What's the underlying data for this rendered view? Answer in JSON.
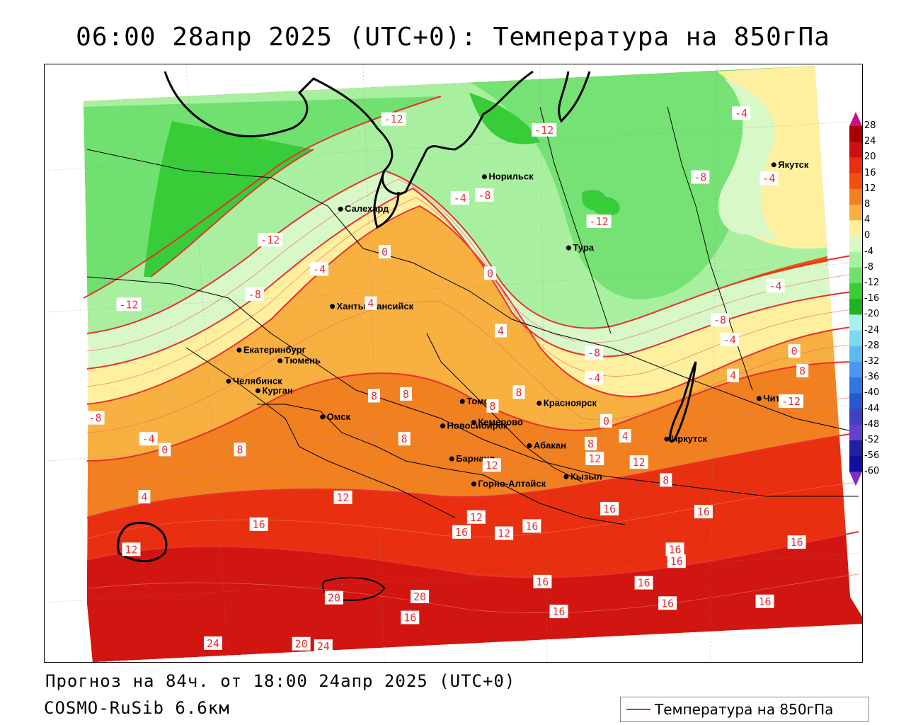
{
  "title": "06:00 28апр 2025 (UTC+0): Температура на 850гПа",
  "forecast_line": "Прогноз на 84ч. от 18:00 24апр 2025 (UTC+0)",
  "model_line": "COSMO-RuSib 6.6км",
  "legend": {
    "label": "Температура на 850гПа",
    "color": "#e83030"
  },
  "colorbar": {
    "levels": [
      "28",
      "24",
      "20",
      "16",
      "12",
      "8",
      "4",
      "0",
      "-4",
      "-8",
      "-12",
      "-16",
      "-20",
      "-24",
      "-28",
      "-32",
      "-36",
      "-40",
      "-44",
      "-48",
      "-52",
      "-56",
      "-60"
    ],
    "colors": [
      "#cc1080",
      "#a80000",
      "#cc1010",
      "#e83010",
      "#f05010",
      "#f08020",
      "#f8b040",
      "#fff0a0",
      "#d8f8c8",
      "#a8f0a0",
      "#70e070",
      "#38cc38",
      "#20b020",
      "#a8f0f0",
      "#80d8f0",
      "#60b8f0",
      "#4898f0",
      "#3078e0",
      "#2858d0",
      "#4040c0",
      "#6040d0",
      "#2020a0",
      "#1010a0",
      "#8030c0"
    ]
  },
  "cities": [
    {
      "name": "Норильск",
      "fx": 0.538,
      "fy": 0.188
    },
    {
      "name": "Якутск",
      "fx": 0.892,
      "fy": 0.168
    },
    {
      "name": "Салехард",
      "fx": 0.362,
      "fy": 0.242
    },
    {
      "name": "Тура",
      "fx": 0.641,
      "fy": 0.307
    },
    {
      "name": "Ханты-Мансийск",
      "fx": 0.352,
      "fy": 0.405
    },
    {
      "name": "Екатеринбург",
      "fx": 0.238,
      "fy": 0.478
    },
    {
      "name": "Тюмень",
      "fx": 0.288,
      "fy": 0.496
    },
    {
      "name": "Челябинск",
      "fx": 0.225,
      "fy": 0.53
    },
    {
      "name": "Курган",
      "fx": 0.261,
      "fy": 0.546
    },
    {
      "name": "Омск",
      "fx": 0.34,
      "fy": 0.59
    },
    {
      "name": "Новосибирск",
      "fx": 0.487,
      "fy": 0.605
    },
    {
      "name": "Томск",
      "fx": 0.511,
      "fy": 0.564
    },
    {
      "name": "Кемерово",
      "fx": 0.525,
      "fy": 0.599
    },
    {
      "name": "Красноярск",
      "fx": 0.605,
      "fy": 0.567
    },
    {
      "name": "Барнаул",
      "fx": 0.498,
      "fy": 0.66
    },
    {
      "name": "Абакан",
      "fx": 0.593,
      "fy": 0.638
    },
    {
      "name": "Иркутск",
      "fx": 0.761,
      "fy": 0.627
    },
    {
      "name": "Чита",
      "fx": 0.874,
      "fy": 0.559
    },
    {
      "name": "Горно-Алтайск",
      "fx": 0.525,
      "fy": 0.702
    },
    {
      "name": "Кызыл",
      "fx": 0.638,
      "fy": 0.69
    }
  ],
  "contour_labels": [
    {
      "t": "-12",
      "fx": 0.427,
      "fy": 0.092
    },
    {
      "t": "-12",
      "fx": 0.611,
      "fy": 0.11
    },
    {
      "t": "-4",
      "fx": 0.852,
      "fy": 0.082
    },
    {
      "t": "-8",
      "fx": 0.802,
      "fy": 0.189
    },
    {
      "t": "-4",
      "fx": 0.886,
      "fy": 0.191
    },
    {
      "t": "-4",
      "fx": 0.508,
      "fy": 0.224
    },
    {
      "t": "-8",
      "fx": 0.538,
      "fy": 0.219
    },
    {
      "t": "-12",
      "fx": 0.678,
      "fy": 0.263
    },
    {
      "t": "-12",
      "fx": 0.276,
      "fy": 0.294
    },
    {
      "t": "0",
      "fx": 0.416,
      "fy": 0.314
    },
    {
      "t": "-4",
      "fx": 0.336,
      "fy": 0.343
    },
    {
      "t": "0",
      "fx": 0.545,
      "fy": 0.35
    },
    {
      "t": "-4",
      "fx": 0.894,
      "fy": 0.371
    },
    {
      "t": "-8",
      "fx": 0.257,
      "fy": 0.385
    },
    {
      "t": "-12",
      "fx": 0.103,
      "fy": 0.402
    },
    {
      "t": "4",
      "fx": 0.399,
      "fy": 0.4
    },
    {
      "t": "-8",
      "fx": 0.826,
      "fy": 0.428
    },
    {
      "t": "4",
      "fx": 0.558,
      "fy": 0.446
    },
    {
      "t": "-4",
      "fx": 0.838,
      "fy": 0.461
    },
    {
      "t": "0",
      "fx": 0.917,
      "fy": 0.48
    },
    {
      "t": "-8",
      "fx": 0.672,
      "fy": 0.483
    },
    {
      "t": "-4",
      "fx": 0.672,
      "fy": 0.525
    },
    {
      "t": "4",
      "fx": 0.842,
      "fy": 0.521
    },
    {
      "t": "8",
      "fx": 0.927,
      "fy": 0.513
    },
    {
      "t": "8",
      "fx": 0.403,
      "fy": 0.555
    },
    {
      "t": "8",
      "fx": 0.442,
      "fy": 0.552
    },
    {
      "t": "8",
      "fx": 0.58,
      "fy": 0.549
    },
    {
      "t": "-12",
      "fx": 0.913,
      "fy": 0.564
    },
    {
      "t": "-8",
      "fx": 0.062,
      "fy": 0.592
    },
    {
      "t": "8",
      "fx": 0.548,
      "fy": 0.572
    },
    {
      "t": "0",
      "fx": 0.687,
      "fy": 0.597
    },
    {
      "t": "8",
      "fx": 0.44,
      "fy": 0.627
    },
    {
      "t": "-4",
      "fx": 0.127,
      "fy": 0.627
    },
    {
      "t": "0",
      "fx": 0.147,
      "fy": 0.645
    },
    {
      "t": "8",
      "fx": 0.239,
      "fy": 0.645
    },
    {
      "t": "4",
      "fx": 0.71,
      "fy": 0.622
    },
    {
      "t": "8",
      "fx": 0.668,
      "fy": 0.635
    },
    {
      "t": "12",
      "fx": 0.673,
      "fy": 0.66
    },
    {
      "t": "12",
      "fx": 0.727,
      "fy": 0.666
    },
    {
      "t": "12",
      "fx": 0.547,
      "fy": 0.671
    },
    {
      "t": "8",
      "fx": 0.76,
      "fy": 0.696
    },
    {
      "t": "4",
      "fx": 0.122,
      "fy": 0.724
    },
    {
      "t": "12",
      "fx": 0.365,
      "fy": 0.725
    },
    {
      "t": "16",
      "fx": 0.691,
      "fy": 0.744
    },
    {
      "t": "16",
      "fx": 0.806,
      "fy": 0.749
    },
    {
      "t": "16",
      "fx": 0.262,
      "fy": 0.77
    },
    {
      "t": "12",
      "fx": 0.528,
      "fy": 0.758
    },
    {
      "t": "16",
      "fx": 0.51,
      "fy": 0.783
    },
    {
      "t": "12",
      "fx": 0.562,
      "fy": 0.785
    },
    {
      "t": "16",
      "fx": 0.596,
      "fy": 0.773
    },
    {
      "t": "12",
      "fx": 0.106,
      "fy": 0.812
    },
    {
      "t": "16",
      "fx": 0.771,
      "fy": 0.812
    },
    {
      "t": "16",
      "fx": 0.773,
      "fy": 0.832
    },
    {
      "t": "16",
      "fx": 0.92,
      "fy": 0.8
    },
    {
      "t": "16",
      "fx": 0.609,
      "fy": 0.866
    },
    {
      "t": "16",
      "fx": 0.733,
      "fy": 0.868
    },
    {
      "t": "16",
      "fx": 0.762,
      "fy": 0.902
    },
    {
      "t": "16",
      "fx": 0.881,
      "fy": 0.899
    },
    {
      "t": "20",
      "fx": 0.354,
      "fy": 0.893
    },
    {
      "t": "20",
      "fx": 0.459,
      "fy": 0.891
    },
    {
      "t": "16",
      "fx": 0.447,
      "fy": 0.926
    },
    {
      "t": "16",
      "fx": 0.629,
      "fy": 0.916
    },
    {
      "t": "24",
      "fx": 0.206,
      "fy": 0.969
    },
    {
      "t": "20",
      "fx": 0.314,
      "fy": 0.97
    },
    {
      "t": "24",
      "fx": 0.341,
      "fy": 0.974
    }
  ]
}
